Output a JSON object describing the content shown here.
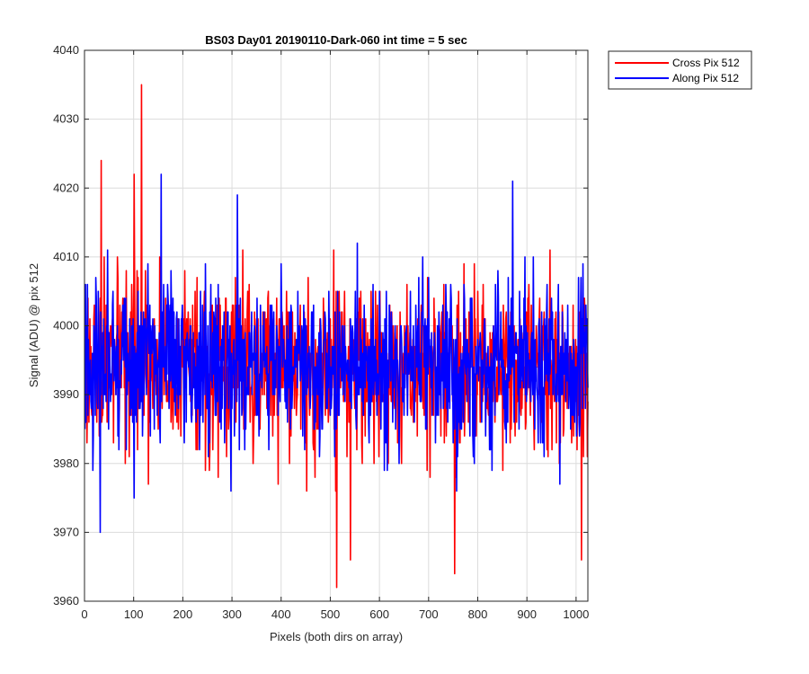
{
  "chart_data": {
    "type": "line",
    "title": "BS03 Day01 20190110-Dark-060 int time = 5 sec",
    "xlabel": "Pixels (both dirs on array)",
    "ylabel": "Signal (ADU) @ pix 512",
    "xlim": [
      0,
      1024
    ],
    "ylim": [
      3960,
      4040
    ],
    "xticks": [
      0,
      100,
      200,
      300,
      400,
      500,
      600,
      700,
      800,
      900,
      1000
    ],
    "yticks": [
      3960,
      3970,
      3980,
      3990,
      4000,
      4010,
      4020,
      4030,
      4040
    ],
    "grid": true,
    "legend_position": "outside-top-right",
    "noise_model": {
      "baseline": 3994,
      "spread": 6,
      "length": 1024
    },
    "series": [
      {
        "name": "Cross Pix 512",
        "color": "#ff0000",
        "seed": 17,
        "peaks": [
          [
            33,
            4024
          ],
          [
            100,
            4022
          ],
          [
            115,
            4035
          ],
          [
            512,
            3962
          ],
          [
            540,
            3966
          ],
          [
            752,
            3964
          ],
          [
            1010,
            3966
          ]
        ]
      },
      {
        "name": "Along Pix 512",
        "color": "#0000ff",
        "seed": 91,
        "peaks": [
          [
            31,
            3970
          ],
          [
            155,
            4022
          ],
          [
            310,
            4019
          ],
          [
            870,
            4021
          ]
        ]
      }
    ]
  }
}
